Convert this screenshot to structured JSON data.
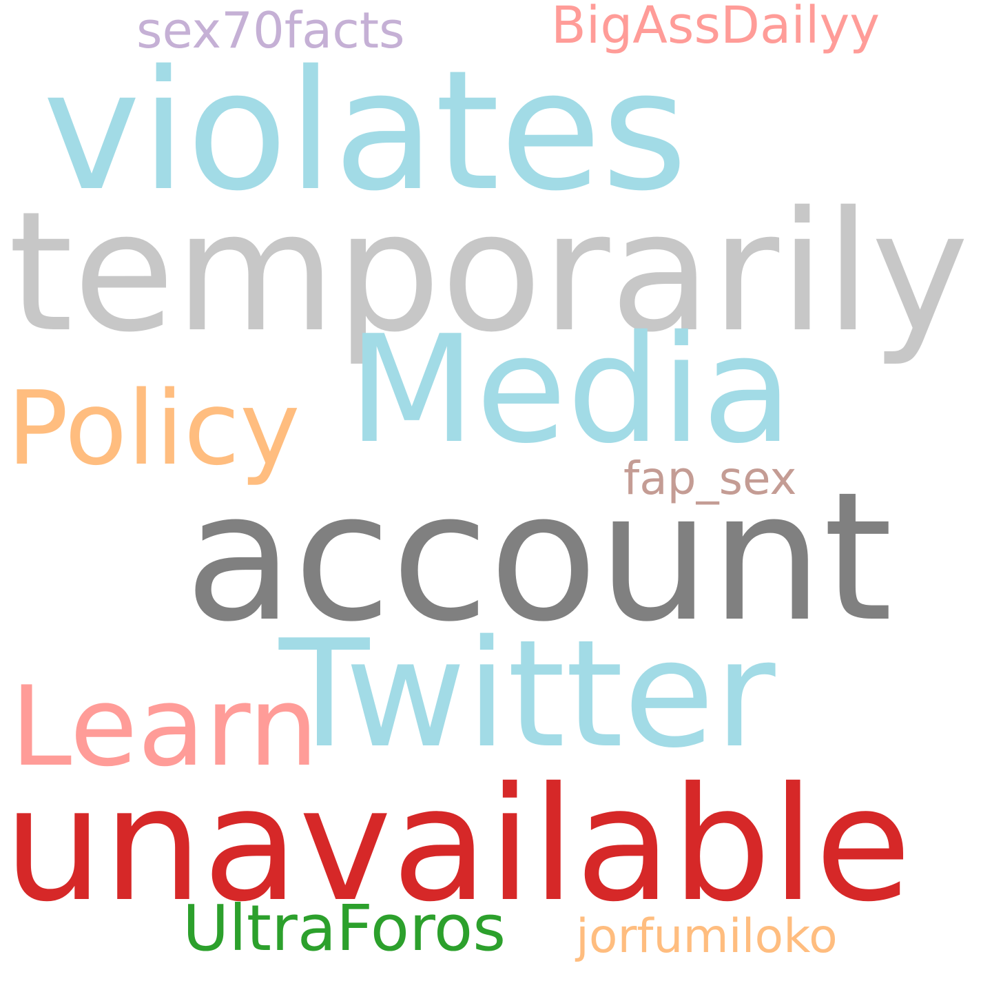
{
  "words": [
    {
      "key": "violates",
      "text": "violates",
      "color": "#a2dbe6"
    },
    {
      "key": "temporarily",
      "text": "temporarily",
      "color": "#c7c7c7"
    },
    {
      "key": "media",
      "text": "Media",
      "color": "#a2dbe6"
    },
    {
      "key": "policy",
      "text": "Policy",
      "color": "#ffbd7f"
    },
    {
      "key": "account",
      "text": "account",
      "color": "#808080"
    },
    {
      "key": "twitter",
      "text": "Twitter",
      "color": "#a2dbe6"
    },
    {
      "key": "learn",
      "text": "Learn",
      "color": "#ff9c98"
    },
    {
      "key": "unavailable",
      "text": "unavailable",
      "color": "#d62828"
    },
    {
      "key": "ultraforos",
      "text": "UltraForos",
      "color": "#2ca02c"
    },
    {
      "key": "jorfumiloko",
      "text": "jorfumiloko",
      "color": "#ffbd7f"
    },
    {
      "key": "sex70facts",
      "text": "sex70facts",
      "color": "#c5b0d5"
    },
    {
      "key": "bigassdailyy",
      "text": "BigAssDailyy",
      "color": "#ff9c98"
    },
    {
      "key": "fap_sex",
      "text": "fap_sex",
      "color": "#c49c94"
    }
  ]
}
